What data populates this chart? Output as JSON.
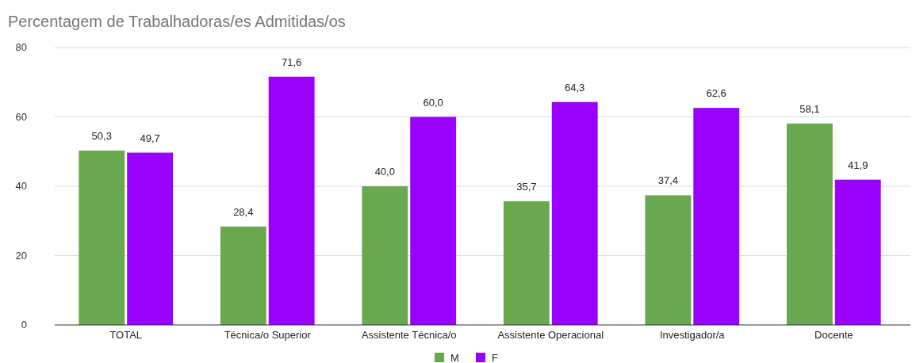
{
  "chart_data": {
    "type": "bar",
    "title": "Percentagem de Trabalhadoras/es Admitidas/os",
    "categories": [
      "TOTAL",
      "Técnica/o Superior",
      "Assistente Técnica/o",
      "Assistente Operacional",
      "Investigador/a",
      "Docente"
    ],
    "series": [
      {
        "name": "M",
        "color": "#6aa84f",
        "values": [
          50.3,
          28.4,
          40.0,
          35.7,
          37.4,
          58.1
        ],
        "value_labels": [
          "50,3",
          "28,4",
          "40,0",
          "35,7",
          "37,4",
          "58,1"
        ]
      },
      {
        "name": "F",
        "color": "#9900ff",
        "values": [
          49.7,
          71.6,
          60.0,
          64.3,
          62.6,
          41.9
        ],
        "value_labels": [
          "49,7",
          "71,6",
          "60,0",
          "64,3",
          "62,6",
          "41,9"
        ]
      }
    ],
    "ylim": [
      0,
      80
    ],
    "yticks": [
      0,
      20,
      40,
      60,
      80
    ],
    "grid": "y",
    "legend": "bottom"
  }
}
